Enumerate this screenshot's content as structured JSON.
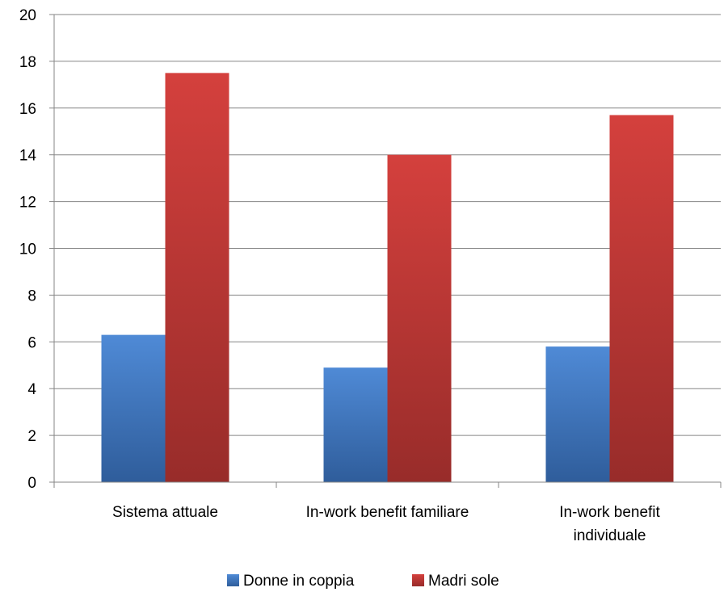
{
  "chart_data": {
    "type": "bar",
    "categories": [
      [
        "Sistema attuale"
      ],
      [
        "In-work benefit familiare"
      ],
      [
        "In-work benefit",
        "individuale"
      ]
    ],
    "series": [
      {
        "name": "Donne in coppia",
        "values": [
          6.3,
          4.9,
          5.8
        ],
        "color": "#4A7EBB"
      },
      {
        "name": "Madri sole",
        "values": [
          17.5,
          14.0,
          15.7
        ],
        "color": "#BE4B48"
      }
    ],
    "ylim": [
      0,
      20
    ],
    "yticks": [
      0,
      2,
      4,
      6,
      8,
      10,
      12,
      14,
      16,
      18,
      20
    ],
    "grid": true,
    "legend_position": "bottom"
  }
}
